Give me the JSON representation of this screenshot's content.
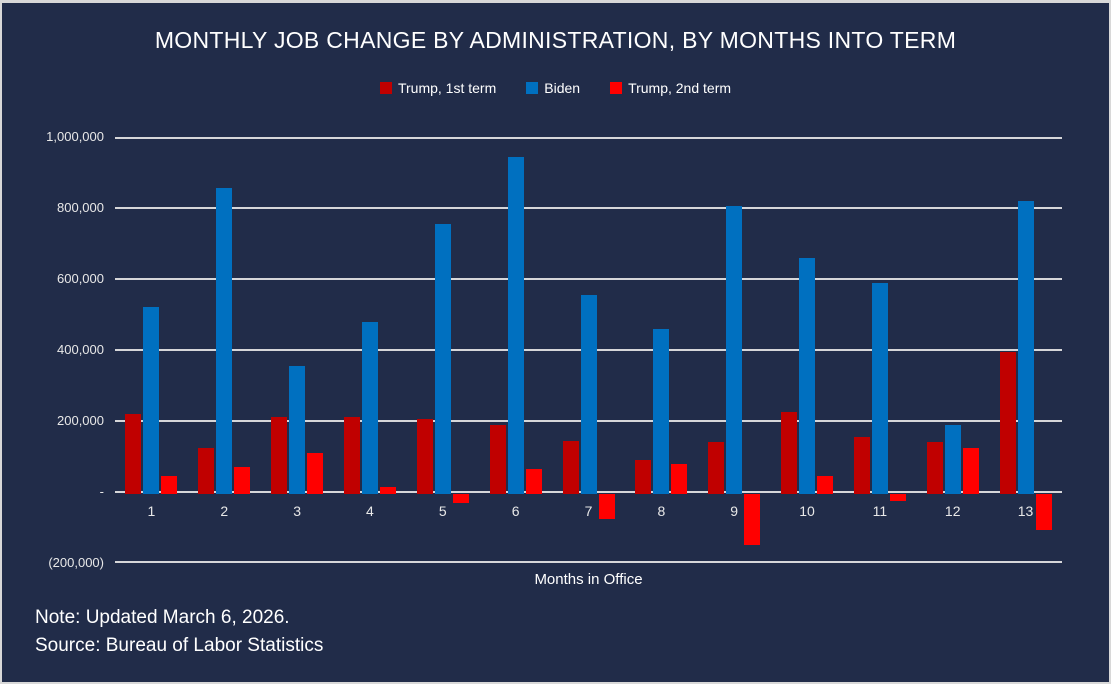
{
  "title": "MONTHLY JOB CHANGE BY ADMINISTRATION, BY MONTHS INTO TERM",
  "notes": {
    "note": "Note: Updated March 6, 2026.",
    "source": "Source: Bureau of Labor Statistics"
  },
  "colors": {
    "background": "#212c49",
    "gridline": "#d6d6d9",
    "text": "#ffffff"
  },
  "chart_data": {
    "type": "bar",
    "title": "MONTHLY JOB CHANGE BY ADMINISTRATION, BY MONTHS INTO TERM",
    "xlabel": "Months in Office",
    "ylabel": "",
    "ylim": [
      -200000,
      1000000
    ],
    "grid": true,
    "legend_position": "top",
    "categories": [
      "1",
      "2",
      "3",
      "4",
      "5",
      "6",
      "7",
      "8",
      "9",
      "10",
      "11",
      "12",
      "13"
    ],
    "series": [
      {
        "name": "Trump, 1st term",
        "color": "#c00000",
        "values": [
          220000,
          125000,
          210000,
          210000,
          205000,
          190000,
          145000,
          90000,
          140000,
          225000,
          155000,
          140000,
          395000
        ]
      },
      {
        "name": "Biden",
        "color": "#0070c0",
        "values": [
          520000,
          855000,
          355000,
          480000,
          755000,
          945000,
          555000,
          460000,
          805000,
          660000,
          590000,
          190000,
          820000
        ]
      },
      {
        "name": "Trump, 2nd term",
        "color": "#ff0000",
        "values": [
          45000,
          70000,
          110000,
          15000,
          -25000,
          65000,
          -70000,
          80000,
          -145000,
          45000,
          -20000,
          125000,
          -100000
        ]
      }
    ],
    "y_ticks": [
      {
        "value": 1000000,
        "label": "1,000,000"
      },
      {
        "value": 800000,
        "label": "800,000"
      },
      {
        "value": 600000,
        "label": "600,000"
      },
      {
        "value": 400000,
        "label": "400,000"
      },
      {
        "value": 200000,
        "label": "200,000"
      },
      {
        "value": 0,
        "label": "-"
      },
      {
        "value": -200000,
        "label": "(200,000)"
      }
    ]
  }
}
